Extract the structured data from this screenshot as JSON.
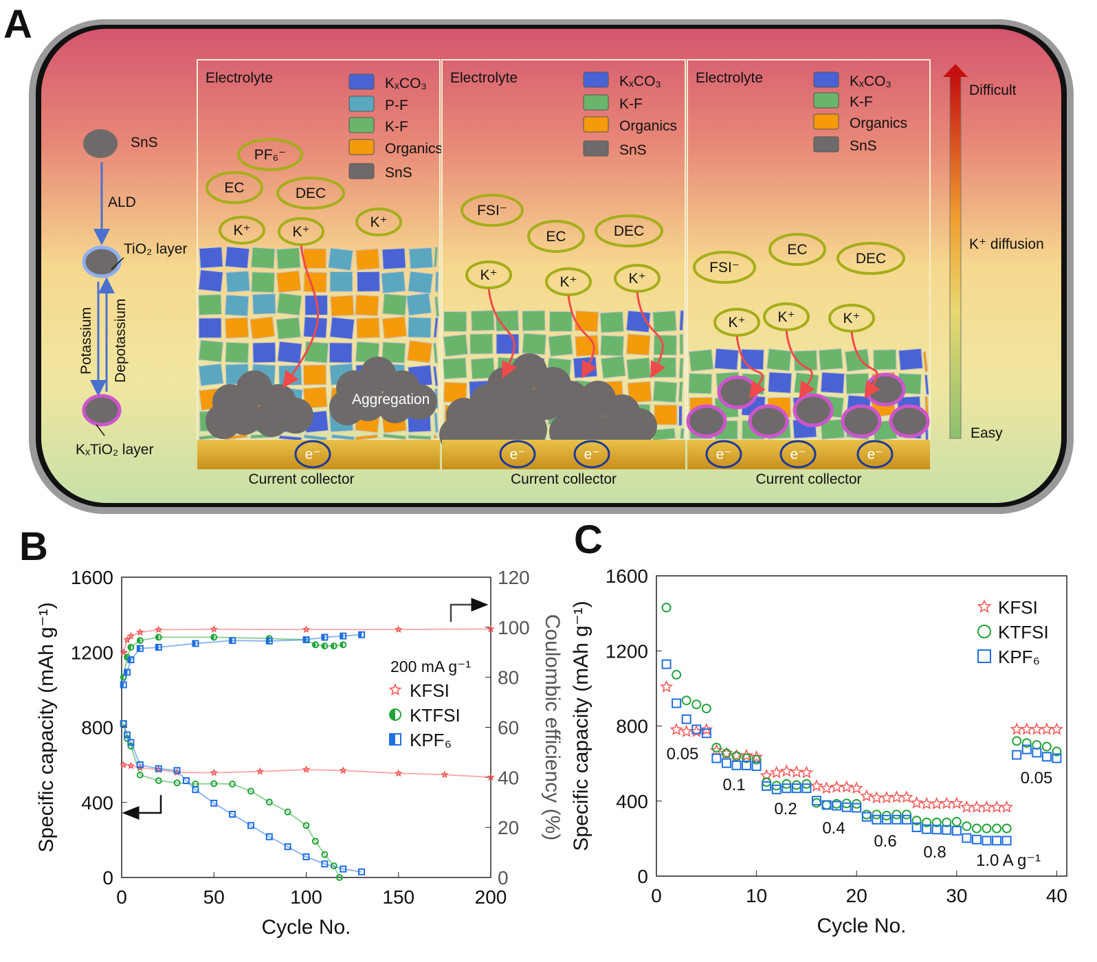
{
  "panel_labels": {
    "a": "A",
    "b": "B",
    "c": "C"
  },
  "panel_a": {
    "left": {
      "sns": "SnS",
      "ald": "ALD",
      "tio2_layer": "TiO₂ layer",
      "potassium": "Potassium",
      "depotassium": "Depotassium",
      "ktio2_layer": "KₓTiO₂ layer"
    },
    "boxes": [
      {
        "electrolyte": "Electrolyte",
        "legend": [
          {
            "label": "KₓCO₃",
            "color": "#4a63d4"
          },
          {
            "label": "P-F",
            "color": "#5ba7c0"
          },
          {
            "label": "K-F",
            "color": "#6ab56c"
          },
          {
            "label": "Organics",
            "color": "#f59a0a"
          },
          {
            "label": "SnS",
            "color": "#6e6a6a"
          }
        ],
        "ions": [
          "PF₆⁻",
          "EC",
          "DEC",
          "K⁺",
          "K⁺",
          "K⁺"
        ],
        "aggregation": "Aggregation",
        "electrons": [
          "e⁻"
        ],
        "collector": "Current collector"
      },
      {
        "electrolyte": "Electrolyte",
        "legend": [
          {
            "label": "KₓCO₃",
            "color": "#4a63d4"
          },
          {
            "label": "K-F",
            "color": "#6ab56c"
          },
          {
            "label": "Organics",
            "color": "#f59a0a"
          },
          {
            "label": "SnS",
            "color": "#6e6a6a"
          }
        ],
        "ions": [
          "FSI⁻",
          "EC",
          "DEC",
          "K⁺",
          "K⁺",
          "K⁺"
        ],
        "electrons": [
          "e⁻",
          "e⁻"
        ],
        "collector": "Current collector"
      },
      {
        "electrolyte": "Electrolyte",
        "legend": [
          {
            "label": "KₓCO₃",
            "color": "#4a63d4"
          },
          {
            "label": "K-F",
            "color": "#6ab56c"
          },
          {
            "label": "Organics",
            "color": "#f59a0a"
          },
          {
            "label": "SnS",
            "color": "#6e6a6a"
          }
        ],
        "ions": [
          "FSI⁻",
          "EC",
          "DEC",
          "K⁺",
          "K⁺",
          "K⁺"
        ],
        "electrons": [
          "e⁻",
          "e⁻",
          "e⁻"
        ],
        "collector": "Current collector"
      }
    ],
    "diffusion": {
      "difficult": "Difficult",
      "k_diffusion": "K⁺ diffusion",
      "easy": "Easy"
    }
  },
  "chart_data": [
    {
      "type": "scatter",
      "panel": "B",
      "xlabel": "Cycle No.",
      "ylabel": "Specific capacity (mAh g⁻¹)",
      "y2label": "Coulombic efficiency (%)",
      "xlim": [
        0,
        200
      ],
      "ylim": [
        0,
        1600
      ],
      "y2lim": [
        0,
        120
      ],
      "xticks": [
        "0",
        "50",
        "100",
        "150",
        "200"
      ],
      "yticks": [
        "0",
        "400",
        "800",
        "1200",
        "1600"
      ],
      "y2ticks": [
        "0",
        "20",
        "40",
        "60",
        "80",
        "100",
        "120"
      ],
      "legend_title": "200 mA g⁻¹",
      "legend_position": "right-middle",
      "grid": false,
      "series": [
        {
          "name": "KFSI",
          "color": "#f25c5c",
          "marker": "star",
          "capacity": {
            "x": [
              1,
              5,
              10,
              20,
              30,
              50,
              75,
              100,
              120,
              150,
              175,
              200
            ],
            "y": [
              600,
              595,
              585,
              575,
              560,
              558,
              565,
              575,
              570,
              555,
              548,
              534
            ]
          },
          "ce": {
            "x": [
              1,
              3,
              5,
              10,
              20,
              50,
              100,
              150,
              200
            ],
            "y": [
              90,
              95,
              96.5,
              98,
              99,
              99.2,
              99.1,
              99.1,
              99.3
            ]
          }
        },
        {
          "name": "KTFSI",
          "color": "#22a33a",
          "marker": "half-circle",
          "capacity": {
            "x": [
              1,
              3,
              5,
              10,
              20,
              30,
              40,
              50,
              60,
              70,
              80,
              90,
              100,
              105,
              110,
              115,
              118
            ],
            "y": [
              820,
              740,
              700,
              546,
              516,
              504,
              498,
              500,
              498,
              460,
              402,
              349,
              277,
              193,
              122,
              62,
              0
            ]
          },
          "ce": {
            "x": [
              1,
              3,
              5,
              10,
              20,
              50,
              80,
              100,
              105,
              110,
              115,
              120
            ],
            "y": [
              80,
              88,
              92,
              94.7,
              96,
              96,
              95.5,
              95,
              93,
              92.5,
              92.5,
              93
            ]
          }
        },
        {
          "name": "KPF₆",
          "color": "#1f6fe0",
          "marker": "half-square",
          "capacity": {
            "x": [
              1,
              3,
              5,
              10,
              20,
              30,
              35,
              40,
              50,
              60,
              70,
              80,
              90,
              100,
              110,
              120,
              130
            ],
            "y": [
              820,
              760,
              720,
              600,
              580,
              570,
              516,
              468,
              396,
              337,
              277,
              217,
              164,
              110,
              72,
              45,
              30
            ]
          },
          "ce": {
            "x": [
              1,
              3,
              5,
              10,
              20,
              40,
              60,
              80,
              100,
              110,
              120,
              130
            ],
            "y": [
              77,
              82,
              87,
              91.5,
              92,
              93.5,
              94.7,
              94.5,
              95,
              96,
              96.5,
              97
            ]
          }
        }
      ]
    },
    {
      "type": "scatter",
      "panel": "C",
      "xlabel": "Cycle No.",
      "ylabel": "Specific capacity (mAh g⁻¹)",
      "xlim": [
        0,
        41
      ],
      "ylim": [
        0,
        1600
      ],
      "xticks": [
        "0",
        "10",
        "20",
        "30",
        "40"
      ],
      "yticks": [
        "0",
        "400",
        "800",
        "1200",
        "1600"
      ],
      "legend_position": "top-right",
      "grid": false,
      "rate_labels": [
        "0.05",
        "0.1",
        "0.2",
        "0.4",
        "0.6",
        "0.8",
        "1.0  A g⁻¹",
        "0.05"
      ],
      "x": [
        1,
        2,
        3,
        4,
        5,
        6,
        7,
        8,
        9,
        10,
        11,
        12,
        13,
        14,
        15,
        16,
        17,
        18,
        19,
        20,
        21,
        22,
        23,
        24,
        25,
        26,
        27,
        28,
        29,
        30,
        31,
        32,
        33,
        34,
        35,
        36,
        37,
        38,
        39,
        40
      ],
      "series": [
        {
          "name": "KFSI",
          "color": "#f25c5c",
          "marker": "star",
          "values": [
            1008,
            780,
            770,
            770,
            780,
            669,
            654,
            642,
            642,
            634,
            535,
            551,
            559,
            554,
            551,
            480,
            468,
            474,
            474,
            468,
            426,
            417,
            417,
            420,
            420,
            390,
            385,
            385,
            387,
            387,
            367,
            367,
            367,
            367,
            367,
            782,
            782,
            782,
            782,
            782
          ]
        },
        {
          "name": "KTFSI",
          "color": "#22a33a",
          "marker": "circle",
          "values": [
            1431,
            1073,
            936,
            915,
            893,
            685,
            654,
            640,
            628,
            620,
            501,
            482,
            491,
            485,
            491,
            390,
            379,
            385,
            387,
            385,
            328,
            328,
            322,
            328,
            328,
            296,
            286,
            286,
            286,
            290,
            266,
            254,
            254,
            254,
            254,
            720,
            709,
            699,
            690,
            664
          ]
        },
        {
          "name": "KPF₆",
          "color": "#1f6fe0",
          "marker": "square",
          "values": [
            1129,
            921,
            836,
            782,
            761,
            628,
            602,
            590,
            590,
            586,
            480,
            462,
            468,
            468,
            468,
            402,
            379,
            375,
            367,
            364,
            316,
            301,
            301,
            301,
            301,
            260,
            250,
            248,
            246,
            242,
            203,
            195,
            189,
            189,
            189,
            646,
            675,
            658,
            636,
            628
          ]
        }
      ]
    }
  ]
}
